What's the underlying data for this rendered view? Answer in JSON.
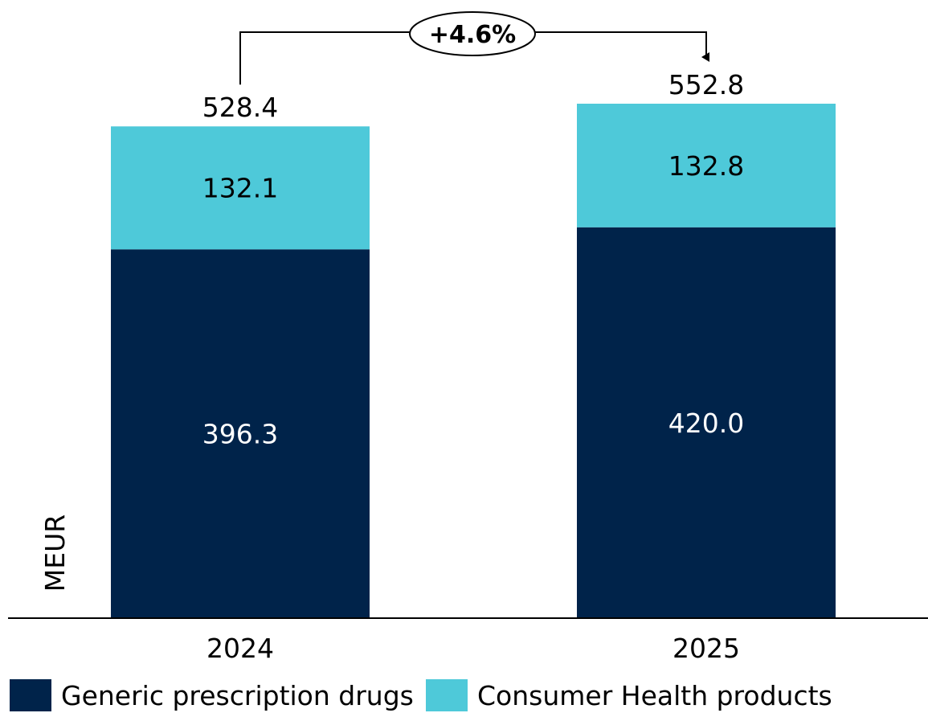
{
  "chart_data": {
    "type": "bar",
    "stacked": true,
    "categories": [
      "2024",
      "2025"
    ],
    "series": [
      {
        "name": "Generic prescription drugs",
        "values": [
          396.3,
          420.0
        ],
        "color": "#00234a",
        "label_color": "#ffffff"
      },
      {
        "name": "Consumer Health products",
        "values": [
          132.1,
          132.8
        ],
        "color": "#4ec9d9",
        "label_color": "#000000"
      }
    ],
    "value_labels": [
      [
        "396.3",
        "420.0"
      ],
      [
        "132.1",
        "132.8"
      ]
    ],
    "totals": [
      528.4,
      552.8
    ],
    "total_labels": [
      "528.4",
      "552.8"
    ],
    "growth_annotation": "+4.6%",
    "ylabel": "MEUR",
    "ylim": [
      0,
      552.8
    ],
    "grid": false,
    "legend_position": "bottom-left"
  }
}
